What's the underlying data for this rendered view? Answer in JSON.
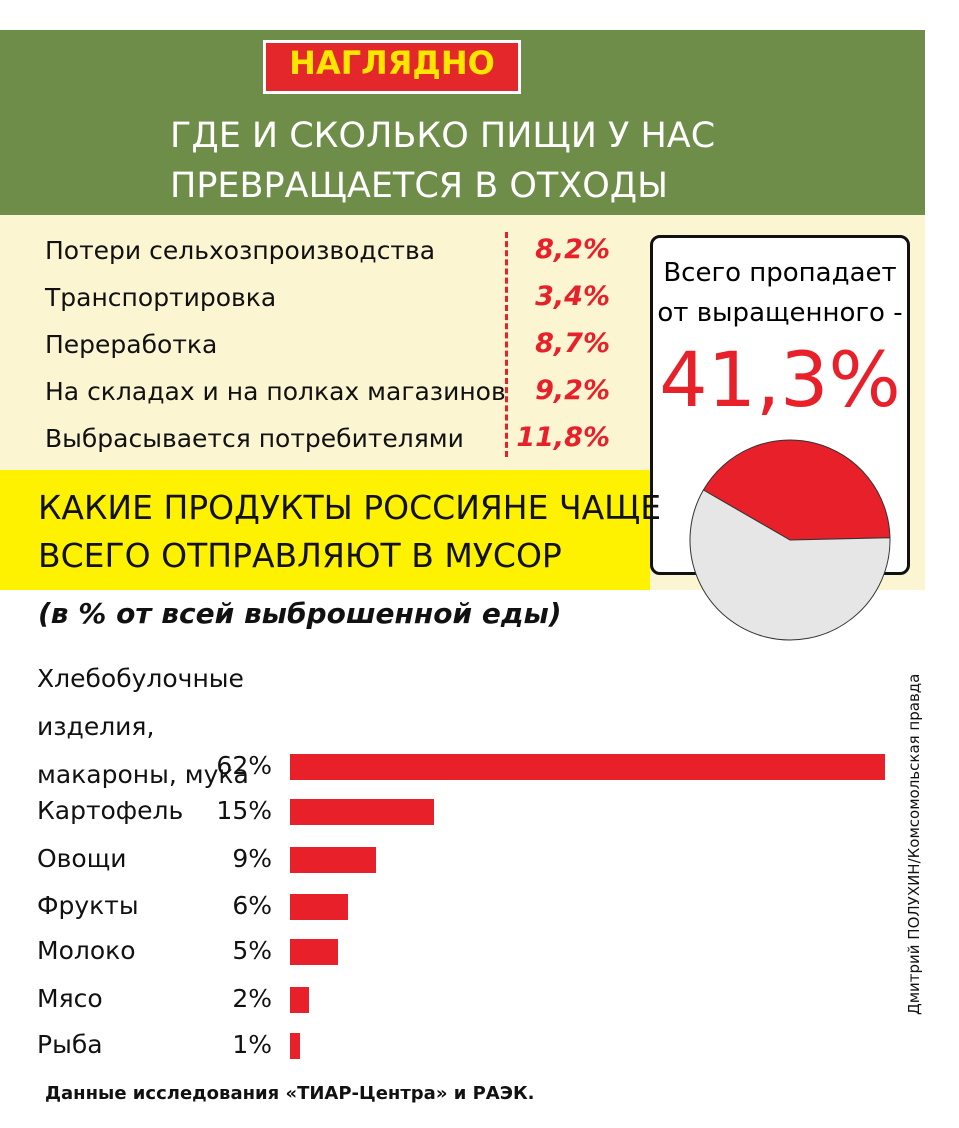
{
  "header": {
    "badge": "НАГЛЯДНО",
    "title_lines": [
      "ГДЕ И СКОЛЬКО ПИЩИ У НАС",
      "ПРЕВРАЩАЕТСЯ В ОТХОДЫ"
    ]
  },
  "losses": [
    {
      "label": "Потери сельхозпроизводства",
      "value": "8,2%"
    },
    {
      "label": "Транспортировка",
      "value": "3,4%"
    },
    {
      "label": "Переработка",
      "value": "8,7%"
    },
    {
      "label": "На складах и на полках магазинов",
      "value": "9,2%"
    },
    {
      "label": "Выбрасывается потребителями",
      "value": "11,8%"
    }
  ],
  "total": {
    "lines": [
      "Всего пропадает",
      "от выращенного -"
    ],
    "value": "41,3%"
  },
  "credit": "Дмитрий ПОЛУХИН/Комсомольская правда",
  "source": "Данные исследования «ТИАР-Центра» и РАЭК.",
  "chart_data": [
    {
      "type": "pie",
      "values": [
        41.3,
        58.7
      ],
      "colors": [
        "#e8202a",
        "#e6e6e6"
      ]
    },
    {
      "type": "bar",
      "title_lines": [
        "КАКИЕ ПРОДУКТЫ РОССИЯНЕ ЧАЩЕ",
        "ВСЕГО ОТПРАВЛЯЮТ В МУСОР"
      ],
      "subtitle": "(в % от всей выброшенной еды)",
      "categories": [
        "Хлебобулочные изделия, макароны, мука",
        "Картофель",
        "Овощи",
        "Фрукты",
        "Молоко",
        "Мясо",
        "Рыба"
      ],
      "values": [
        62,
        15,
        9,
        6,
        5,
        2,
        1
      ],
      "value_labels": [
        "62%",
        "15%",
        "9%",
        "6%",
        "5%",
        "2%",
        "1%"
      ],
      "color": "#e8202a"
    }
  ]
}
